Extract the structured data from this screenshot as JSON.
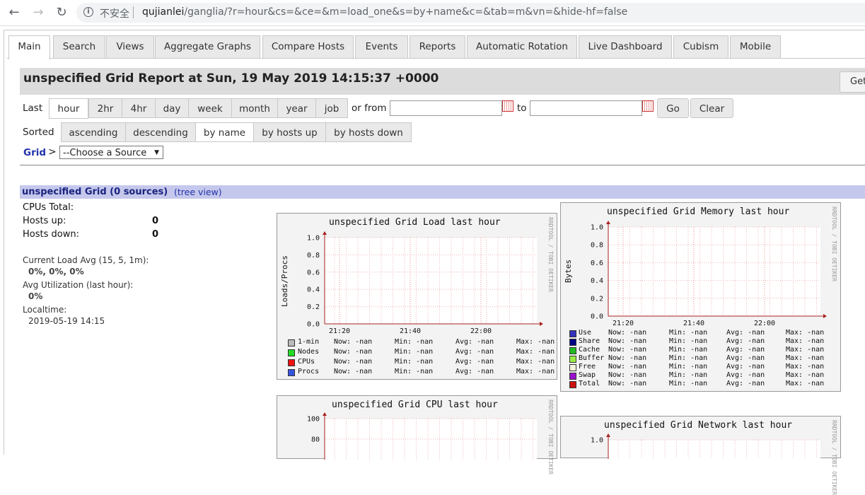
{
  "browser": {
    "insecure_label": "不安全",
    "url_host": "qujianlei",
    "url_path": "/ganglia/?r=hour&cs=&ce=&m=load_one&s=by+name&c=&tab=m&vn=&hide-hf=false"
  },
  "tabs": [
    "Main",
    "Search",
    "Views",
    "Aggregate Graphs",
    "Compare Hosts",
    "Events",
    "Reports",
    "Automatic Rotation",
    "Live Dashboard",
    "Cubism",
    "Mobile"
  ],
  "active_tab": "Main",
  "header": {
    "title": "unspecified Grid Report at Sun, 19 May 2019 14:15:37 +0000",
    "get_button": "Get"
  },
  "range": {
    "label": "Last",
    "options": [
      "hour",
      "2hr",
      "4hr",
      "day",
      "week",
      "month",
      "year",
      "job"
    ],
    "selected": "hour",
    "from_label": "or from",
    "to_label": "to",
    "from_value": "",
    "to_value": "",
    "go": "Go",
    "clear": "Clear"
  },
  "sort": {
    "label": "Sorted",
    "options": [
      "ascending",
      "descending",
      "by name",
      "by hosts up",
      "by hosts down"
    ],
    "selected": "by name"
  },
  "nav": {
    "grid_link": "Grid",
    "gt": ">",
    "source_select": "--Choose a Source"
  },
  "grid": {
    "header": "unspecified Grid (0 sources)",
    "tree_view": "(tree view)",
    "cpus_total_label": "CPUs Total:",
    "cpus_total_value": "",
    "hosts_up_label": "Hosts up:",
    "hosts_up_value": "0",
    "hosts_down_label": "Hosts down:",
    "hosts_down_value": "0",
    "load_label": "Current Load Avg (15, 5, 1m):",
    "load_value": "0%, 0%, 0%",
    "util_label": "Avg Utilization (last hour):",
    "util_value": "0%",
    "localtime_label": "Localtime:",
    "localtime_value": "2019-05-19 14:15"
  },
  "rrd_watermark": "RRDTOOL / TOBI OETIKER",
  "graphs": {
    "load": {
      "title": "unspecified Grid Load last hour",
      "ylabel": "Loads/Procs",
      "yticks": [
        "1.0",
        "0.8",
        "0.6",
        "0.4",
        "0.2",
        "0.0"
      ],
      "xticks": [
        "21:20",
        "21:40",
        "22:00"
      ],
      "legend": [
        {
          "name": "1-min",
          "color": "#bbbbbb",
          "now": "-nan",
          "min": "-nan",
          "avg": "-nan",
          "max": "-nan"
        },
        {
          "name": "Nodes",
          "color": "#22dd22",
          "now": "-nan",
          "min": "-nan",
          "avg": "-nan",
          "max": "-nan"
        },
        {
          "name": "CPUs",
          "color": "#ee1111",
          "now": "-nan",
          "min": "-nan",
          "avg": "-nan",
          "max": "-nan"
        },
        {
          "name": "Procs",
          "color": "#3355dd",
          "now": "-nan",
          "min": "-nan",
          "avg": "-nan",
          "max": "-nan"
        }
      ]
    },
    "memory": {
      "title": "unspecified Grid Memory last hour",
      "ylabel": "Bytes",
      "yticks": [
        "1.0",
        "0.8",
        "0.6",
        "0.4",
        "0.2",
        "0.0"
      ],
      "xticks": [
        "21:20",
        "21:40",
        "22:00"
      ],
      "legend": [
        {
          "name": "Use",
          "color": "#3333bb",
          "now": "-nan",
          "min": "-nan",
          "avg": "-nan",
          "max": "-nan"
        },
        {
          "name": "Share",
          "color": "#000088",
          "now": "-nan",
          "min": "-nan",
          "avg": "-nan",
          "max": "-nan"
        },
        {
          "name": "Cache",
          "color": "#22bb22",
          "now": "-nan",
          "min": "-nan",
          "avg": "-nan",
          "max": "-nan"
        },
        {
          "name": "Buffer",
          "color": "#99ee44",
          "now": "-nan",
          "min": "-nan",
          "avg": "-nan",
          "max": "-nan"
        },
        {
          "name": "Free",
          "color": "#f5f5dd",
          "now": "-nan",
          "min": "-nan",
          "avg": "-nan",
          "max": "-nan"
        },
        {
          "name": "Swap",
          "color": "#9911cc",
          "now": "-nan",
          "min": "-nan",
          "avg": "-nan",
          "max": "-nan"
        },
        {
          "name": "Total",
          "color": "#cc1111",
          "now": "-nan",
          "min": "-nan",
          "avg": "-nan",
          "max": "-nan"
        }
      ]
    },
    "cpu": {
      "title": "unspecified Grid CPU last hour",
      "yticks": [
        "100",
        "80"
      ]
    },
    "network": {
      "title": "unspecified Grid Network last hour",
      "yticks": [
        "1.0"
      ]
    }
  },
  "legend_labels": {
    "now": "Now:",
    "min": "Min:",
    "avg": "Avg:",
    "max": "Max:"
  }
}
